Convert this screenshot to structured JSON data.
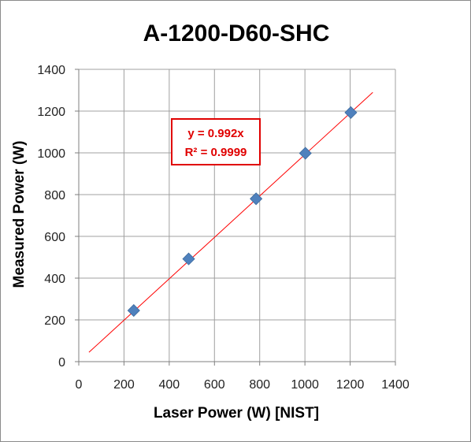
{
  "chart_data": {
    "type": "scatter",
    "title": "A-1200-D60-SHC",
    "xlabel": "Laser Power (W) [NIST]",
    "ylabel": "Measured Power (W)",
    "xlim": [
      0,
      1400
    ],
    "ylim": [
      0,
      1400
    ],
    "xticks": [
      0,
      200,
      400,
      600,
      800,
      1000,
      1200,
      1400
    ],
    "yticks": [
      0,
      200,
      400,
      600,
      800,
      1000,
      1200,
      1400
    ],
    "grid": true,
    "series": [
      {
        "marker": "diamond",
        "color": "#4f81bd",
        "x": [
          243,
          486,
          784,
          1002,
          1203
        ],
        "y": [
          245,
          492,
          780,
          998,
          1193
        ]
      }
    ],
    "trendline": {
      "slope": 0.992,
      "color": "#ff0000",
      "x_range": [
        45,
        1300
      ],
      "equation": "y = 0.992x",
      "r_squared": "R² = 0.9999"
    },
    "frame_color": "#8a8a8a",
    "gridline_color": "#a0a0a0",
    "annotation_color": "#e00000"
  }
}
